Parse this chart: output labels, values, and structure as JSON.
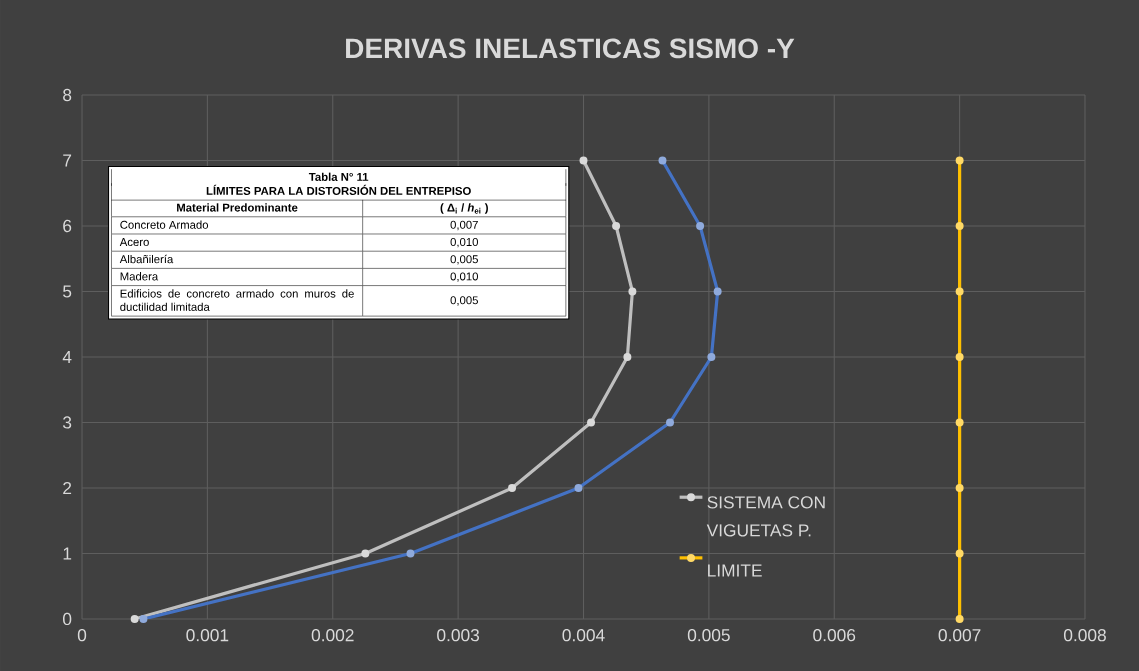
{
  "chart_data": {
    "type": "line",
    "title": "DERIVAS INELASTICAS SISMO -Y",
    "series": [
      {
        "name": "SISTEMA CON VIGUETAS P.",
        "color": "#bfbfbf",
        "x": [
          0.00042,
          0.00226,
          0.00343,
          0.00406,
          0.00435,
          0.00439,
          0.00426,
          0.004
        ],
        "values": [
          0,
          1,
          2,
          3,
          4,
          5,
          6,
          7
        ]
      },
      {
        "color": "#4472c4",
        "x": [
          0.00049,
          0.00262,
          0.00396,
          0.00469,
          0.00502,
          0.00507,
          0.00493,
          0.00463
        ],
        "values": [
          0,
          1,
          2,
          3,
          4,
          5,
          6,
          7
        ]
      },
      {
        "name": "LIMITE",
        "color": "#ffc000",
        "x": [
          0.007,
          0.007,
          0.007,
          0.007,
          0.007,
          0.007,
          0.007,
          0.007
        ],
        "values": [
          0,
          1,
          2,
          3,
          4,
          5,
          6,
          7
        ]
      }
    ],
    "xlim": [
      0,
      0.008
    ],
    "xticks": [
      0,
      0.001,
      0.002,
      0.003,
      0.004,
      0.005,
      0.006,
      0.007,
      0.008
    ],
    "ylim": [
      0,
      8
    ],
    "yticks": [
      0,
      1,
      2,
      3,
      4,
      5,
      6,
      7,
      8
    ],
    "grid": true,
    "legend": "bottom right",
    "marker": "circle",
    "line_style": "solid",
    "annotations": [
      "Tabla N° 11",
      "LÍMITES PARA LA DISTORSIÓN DEL ENTREPISO",
      "Material Predominante",
      "( Δ$_{i}$ / *h*$_{ei}$ )",
      "Concreto Armado",
      "0,007",
      "Acero",
      "0,010",
      "Albañilería",
      "0,005",
      "Madera",
      "0,010",
      "Edificios de concreto armado con muros de ductilidad limitada",
      "0,005"
    ]
  }
}
